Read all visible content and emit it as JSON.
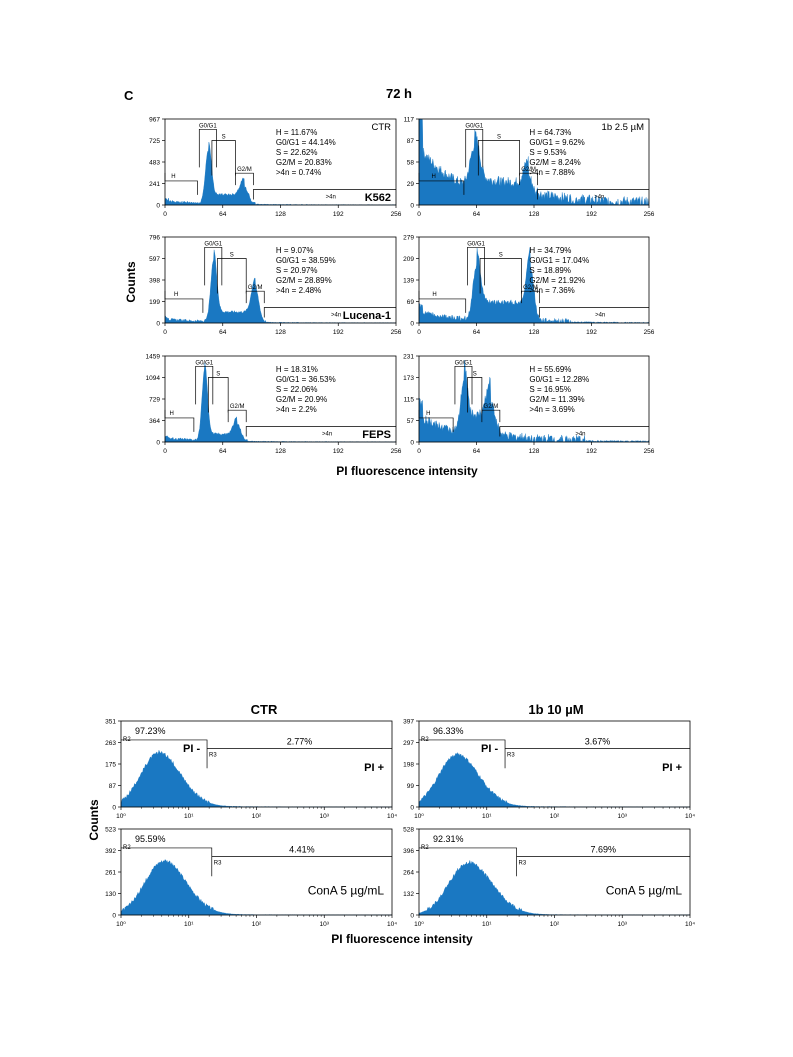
{
  "figure_c": {
    "panel_letter": "C",
    "title": "72 h",
    "ylabel": "Counts",
    "xlabel": "PI fluorescence intensity"
  },
  "figure_d": {
    "ylabel": "Counts",
    "xlabel": "PI fluorescence intensity",
    "col_titles": [
      "CTR",
      "1b 10 µM"
    ]
  },
  "chart_data": [
    {
      "type": "area",
      "id": "c-k562-ctr",
      "corner_label": "CTR",
      "cell_label": "K562",
      "y_ticks": [
        "967",
        "725",
        "483",
        "241",
        "0"
      ],
      "y_max": 967,
      "x_ticks": [
        "0",
        "64",
        "128",
        "192",
        "256"
      ],
      "x_range": [
        0,
        256
      ],
      "gates": {
        "h": "H",
        "g01": "G0/G1",
        "s": "S",
        "g2m": "G2/M",
        "gt4n": ">4n"
      },
      "stats": [
        "H = 11.67%",
        "G0/G1 = 44.14%",
        "S = 22.62%",
        "G2/M = 20.83%",
        ">4n = 0.74%"
      ],
      "profile": {
        "g1_pos": 48,
        "g1_h": 0.62,
        "g1_w": 3.2,
        "g2_pos": 88,
        "g2_h": 0.2,
        "g2_w": 4.5,
        "s": 0.11,
        "sub": 0.04,
        "noise": 0.03
      }
    },
    {
      "type": "area",
      "id": "c-k562-1b",
      "corner_label": "1b 2.5 µM",
      "cell_label": "",
      "y_ticks": [
        "117",
        "87",
        "58",
        "29",
        "0"
      ],
      "y_max": 117,
      "x_ticks": [
        "0",
        "64",
        "128",
        "192",
        "256"
      ],
      "x_range": [
        0,
        256
      ],
      "gates": {
        "h": "H",
        "g01": "G0/G1",
        "s": "S",
        "g2m": "G2/M",
        "gt4n": ">4n"
      },
      "stats": [
        "H = 64.73%",
        "G0/G1 = 9.62%",
        "S = 9.53%",
        "G2/M = 8.24%",
        ">4n = 7.88%"
      ],
      "profile": {
        "g1_pos": 62,
        "g1_h": 0.5,
        "g1_w": 5,
        "g2_pos": 122,
        "g2_h": 0.28,
        "g2_w": 5,
        "s": 0.2,
        "sub": 0.65,
        "noise": 0.12
      }
    },
    {
      "type": "area",
      "id": "c-lucena-ctr",
      "corner_label": "",
      "cell_label": "Lucena-1",
      "y_ticks": [
        "796",
        "597",
        "398",
        "199",
        "0"
      ],
      "y_max": 796,
      "x_ticks": [
        "0",
        "64",
        "128",
        "192",
        "256"
      ],
      "x_range": [
        0,
        256
      ],
      "gates": {
        "h": "H",
        "g01": "G0/G1",
        "s": "S",
        "g2m": "G2/M",
        "gt4n": ">4n"
      },
      "stats": [
        "H = 9.07%",
        "G0/G1 = 38.59%",
        "S = 20.97%",
        "G2/M = 28.89%",
        ">4n = 2.48%"
      ],
      "profile": {
        "g1_pos": 54,
        "g1_h": 0.72,
        "g1_w": 3.2,
        "g2_pos": 100,
        "g2_h": 0.4,
        "g2_w": 4,
        "s": 0.12,
        "sub": 0.04,
        "noise": 0.03
      }
    },
    {
      "type": "area",
      "id": "c-lucena-1b",
      "corner_label": "",
      "cell_label": "",
      "y_ticks": [
        "279",
        "209",
        "139",
        "69",
        "0"
      ],
      "y_max": 279,
      "x_ticks": [
        "0",
        "64",
        "128",
        "192",
        "256"
      ],
      "x_range": [
        0,
        256
      ],
      "gates": {
        "h": "H",
        "g01": "G0/G1",
        "s": "S",
        "g2m": "G2/M",
        "gt4n": ">4n"
      },
      "stats": [
        "H = 34.79%",
        "G0/G1 = 17.04%",
        "S = 18.89%",
        "G2/M = 21.92%",
        ">4n = 7.36%"
      ],
      "profile": {
        "g1_pos": 64,
        "g1_h": 0.62,
        "g1_w": 4,
        "g2_pos": 124,
        "g2_h": 0.62,
        "g2_w": 4,
        "s": 0.22,
        "sub": 0.12,
        "noise": 0.06
      }
    },
    {
      "type": "area",
      "id": "c-feps-ctr",
      "corner_label": "",
      "cell_label": "FEPS",
      "y_ticks": [
        "1459",
        "1094",
        "729",
        "364",
        "0"
      ],
      "y_max": 1459,
      "x_ticks": [
        "0",
        "64",
        "128",
        "192",
        "256"
      ],
      "x_range": [
        0,
        256
      ],
      "gates": {
        "h": "H",
        "g01": "G0/G1",
        "s": "S",
        "g2m": "G2/M",
        "gt4n": ">4n"
      },
      "stats": [
        "H = 18.31%",
        "G0/G1 = 36.53%",
        "S = 22.06%",
        "G2/M = 20.9%",
        ">4n = 2.2%"
      ],
      "profile": {
        "g1_pos": 44,
        "g1_h": 0.82,
        "g1_w": 3,
        "g2_pos": 80,
        "g2_h": 0.2,
        "g2_w": 4,
        "s": 0.08,
        "sub": 0.04,
        "noise": 0.03
      }
    },
    {
      "type": "area",
      "id": "c-feps-1b",
      "corner_label": "",
      "cell_label": "",
      "y_ticks": [
        "231",
        "173",
        "115",
        "57",
        "0"
      ],
      "y_max": 231,
      "x_ticks": [
        "0",
        "64",
        "128",
        "192",
        "256"
      ],
      "x_range": [
        0,
        256
      ],
      "gates": {
        "h": "H",
        "g01": "G0/G1",
        "s": "S",
        "g2m": "G2/M",
        "gt4n": ">4n"
      },
      "stats": [
        "H = 55.69%",
        "G0/G1 = 12.28%",
        "S = 16.95%",
        "G2/M = 11.39%",
        ">4n = 3.69%"
      ],
      "profile": {
        "g1_pos": 50,
        "g1_h": 0.6,
        "g1_w": 3.5,
        "g2_pos": 80,
        "g2_h": 0.42,
        "g2_w": 5,
        "s": 0.25,
        "sub": 0.28,
        "noise": 0.1
      }
    },
    {
      "type": "area",
      "id": "d-ctr-top",
      "x_scale": "log",
      "y_ticks": [
        "351",
        "263",
        "175",
        "87",
        "0"
      ],
      "y_max": 351,
      "x_ticks": [
        "10⁰",
        "10¹",
        "10²",
        "10³",
        "10⁴"
      ],
      "x_range": [
        1,
        10000
      ],
      "gate_labels": {
        "r2": "R2",
        "r3": "R3"
      },
      "pct_neg": "97.23%",
      "pct_pos": "2.77%",
      "region_labels": [
        "PI -",
        "PI +"
      ],
      "annotation": "",
      "profile": {
        "peak_dec": 0.55,
        "peak_h": 0.62,
        "width": 0.26
      }
    },
    {
      "type": "area",
      "id": "d-1b-top",
      "x_scale": "log",
      "y_ticks": [
        "397",
        "297",
        "198",
        "99",
        "0"
      ],
      "y_max": 397,
      "x_ticks": [
        "10⁰",
        "10¹",
        "10²",
        "10³",
        "10⁴"
      ],
      "x_range": [
        1,
        10000
      ],
      "gate_labels": {
        "r2": "R2",
        "r3": "R3"
      },
      "pct_neg": "96.33%",
      "pct_pos": "3.67%",
      "region_labels": [
        "PI -",
        "PI +"
      ],
      "annotation": "",
      "profile": {
        "peak_dec": 0.55,
        "peak_h": 0.6,
        "width": 0.26
      }
    },
    {
      "type": "area",
      "id": "d-ctr-bottom",
      "x_scale": "log",
      "y_ticks": [
        "523",
        "392",
        "261",
        "130",
        "0"
      ],
      "y_max": 523,
      "x_ticks": [
        "10⁰",
        "10¹",
        "10²",
        "10³",
        "10⁴"
      ],
      "x_range": [
        1,
        10000
      ],
      "gate_labels": {
        "r2": "R2",
        "r3": "R3"
      },
      "pct_neg": "95.59%",
      "pct_pos": "4.41%",
      "region_labels": [],
      "annotation": "ConA 5 µg/mL",
      "profile": {
        "peak_dec": 0.62,
        "peak_h": 0.62,
        "width": 0.27
      }
    },
    {
      "type": "area",
      "id": "d-1b-bottom",
      "x_scale": "log",
      "y_ticks": [
        "528",
        "396",
        "264",
        "132",
        "0"
      ],
      "y_max": 528,
      "x_ticks": [
        "10⁰",
        "10¹",
        "10²",
        "10³",
        "10⁴"
      ],
      "x_range": [
        1,
        10000
      ],
      "gate_labels": {
        "r2": "R2",
        "r3": "R3"
      },
      "pct_neg": "92.31%",
      "pct_pos": "7.69%",
      "region_labels": [],
      "annotation": "ConA 5 µg/mL",
      "profile": {
        "peak_dec": 0.72,
        "peak_h": 0.6,
        "width": 0.28
      }
    }
  ]
}
